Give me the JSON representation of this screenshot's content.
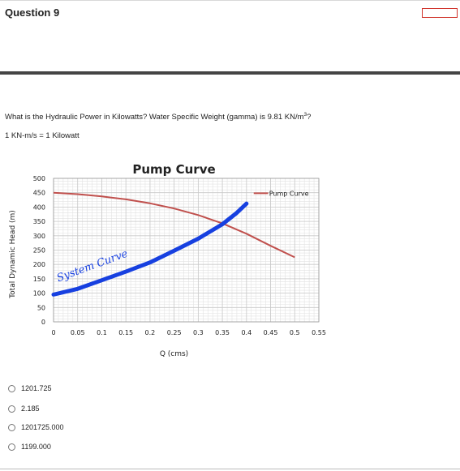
{
  "question": {
    "title": "Question 9",
    "prompt_main": "What is the Hydraulic Power in Kilowatts?  Water Specific Weight (gamma) is 9.81 KN/m",
    "prompt_sup": "3",
    "prompt_end": "?",
    "note": "1 KN-m/s = 1 Kilowatt"
  },
  "chart_data": {
    "type": "line",
    "title": "Pump Curve",
    "xlabel": "Q (cms)",
    "ylabel": "Total Dynamic Head (m)",
    "x_ticks": [
      "0",
      "0.05",
      "0.1",
      "0.15",
      "0.2",
      "0.25",
      "0.3",
      "0.35",
      "0.4",
      "0.45",
      "0.5",
      "0.55"
    ],
    "y_ticks": [
      "0",
      "50",
      "100",
      "150",
      "200",
      "250",
      "300",
      "350",
      "400",
      "450",
      "500"
    ],
    "xlim": [
      0,
      0.55
    ],
    "ylim": [
      0,
      500
    ],
    "grid": true,
    "legend_position": "top-right",
    "series": [
      {
        "name": "Pump Curve",
        "color": "#c0504d",
        "x": [
          0,
          0.05,
          0.1,
          0.15,
          0.2,
          0.25,
          0.3,
          0.35,
          0.4,
          0.45,
          0.5
        ],
        "y": [
          450,
          445,
          437,
          427,
          413,
          395,
          372,
          343,
          307,
          265,
          225
        ]
      }
    ],
    "annotations": [
      {
        "text": "System Curve",
        "color": "#1740e0",
        "x": [
          0,
          0.05,
          0.1,
          0.15,
          0.2,
          0.25,
          0.3,
          0.35,
          0.38,
          0.4
        ],
        "y": [
          95,
          115,
          145,
          175,
          207,
          248,
          290,
          340,
          380,
          412
        ]
      }
    ]
  },
  "answers": [
    {
      "label": "1201.725"
    },
    {
      "label": "2.185"
    },
    {
      "label": "1201725.000"
    },
    {
      "label": "1199.000"
    }
  ]
}
